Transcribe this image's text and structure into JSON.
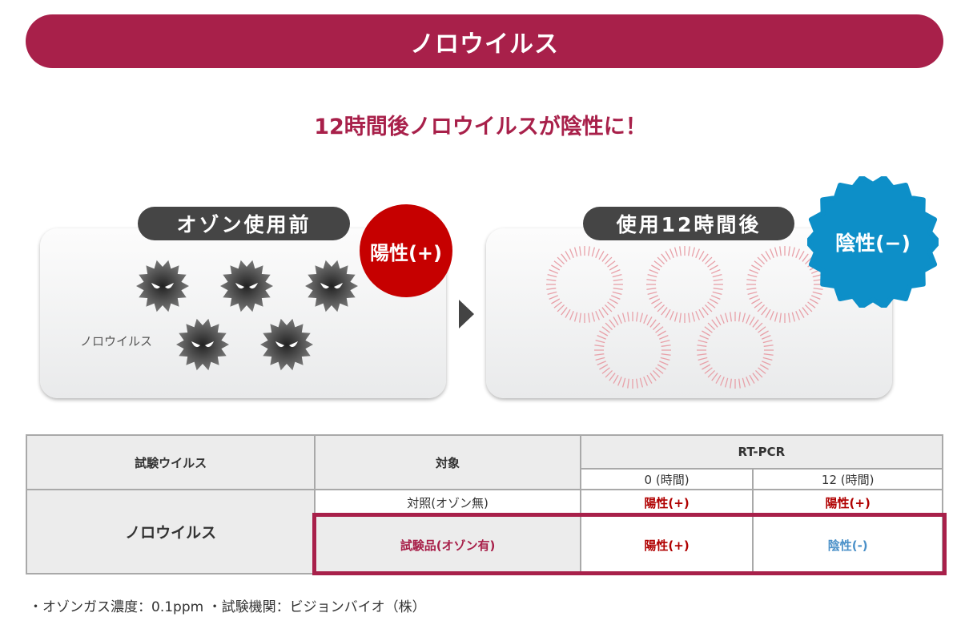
{
  "banner": {
    "title": "ノロウイルス"
  },
  "subtitle": "12時間後ノロウイルスが陰性に！",
  "before": {
    "label": "オゾン使用前",
    "badge": "陽性(+)",
    "virus_label": "ノロウイルス",
    "badge_color": "#c60000"
  },
  "after": {
    "label": "使用12時間後",
    "badge": "陰性(−)",
    "badge_color": "#0d8fc8"
  },
  "table": {
    "headers": {
      "virus": "試験ウイルス",
      "target": "対象",
      "method": "RT-PCR",
      "t0": "0 (時間)",
      "t12": "12 (時間)"
    },
    "virus_name": "ノロウイルス",
    "rows": [
      {
        "target": "対照(オゾン無)",
        "t0": "陽性(+)",
        "t12": "陽性(+)"
      },
      {
        "target": "試験品(オゾン有)",
        "t0": "陽性(+)",
        "t12": "陰性(-)"
      }
    ]
  },
  "footnote": "・オゾンガス濃度：0.1ppm ・試験機関：ビジョンバイオ（株）",
  "colors": {
    "brand": "#a8204a",
    "positive": "#b00000",
    "negative": "#4a90c8"
  }
}
